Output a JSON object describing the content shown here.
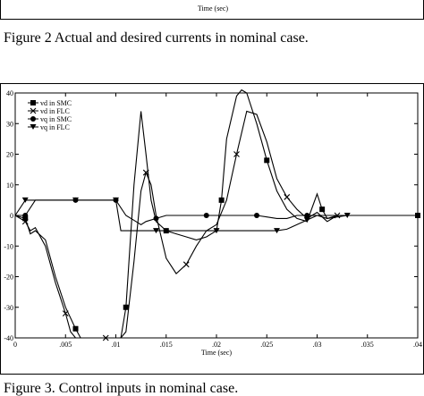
{
  "top_figure": {
    "xlabel": "Time (sec)",
    "caption": "Figure 2 Actual and desired currents in nominal case."
  },
  "bottom_figure": {
    "caption": "Figure 3. Control inputs in nominal case."
  },
  "chart_data": {
    "type": "line",
    "xlabel": "Time (sec)",
    "ylabel": "",
    "xlim": [
      0,
      0.04
    ],
    "ylim": [
      -40,
      40
    ],
    "xticks": [
      "0",
      ".005",
      ".01",
      ".015",
      ".02",
      ".025",
      ".03",
      ".035",
      ".04"
    ],
    "yticks": [
      "40",
      "30",
      "20",
      "10",
      "0",
      "-10",
      "-20",
      "-30",
      "-40"
    ],
    "grid": false,
    "legend_position": "top-left",
    "series": [
      {
        "name": "vd in SMC",
        "marker": "square",
        "x": [
          0,
          0.001,
          0.0015,
          0.002,
          0.003,
          0.004,
          0.005,
          0.006,
          0.0065,
          0.007,
          0.008,
          0.009,
          0.0105,
          0.011,
          0.0118,
          0.0125,
          0.013,
          0.0135,
          0.014,
          0.015,
          0.016,
          0.017,
          0.018,
          0.019,
          0.02,
          0.0205,
          0.021,
          0.022,
          0.0225,
          0.023,
          0.024,
          0.025,
          0.026,
          0.027,
          0.028,
          0.029,
          0.03,
          0.0305,
          0.031,
          0.032,
          0.033,
          0.034,
          0.035,
          0.04
        ],
        "y": [
          0,
          -1,
          -6,
          -5,
          -8,
          -20,
          -30,
          -37,
          -40,
          -40,
          -40,
          -40,
          -40,
          -30,
          10,
          34,
          20,
          5,
          -2,
          -5,
          -6,
          -7,
          -8,
          -7,
          -5,
          5,
          25,
          39,
          41,
          40,
          30,
          18,
          8,
          2,
          -1,
          -2,
          7,
          2,
          -1,
          0,
          0,
          0,
          0,
          0
        ]
      },
      {
        "name": "vd in FLC",
        "marker": "x",
        "x": [
          0,
          0.001,
          0.0015,
          0.002,
          0.003,
          0.004,
          0.005,
          0.0055,
          0.006,
          0.007,
          0.008,
          0.009,
          0.0105,
          0.011,
          0.0118,
          0.0125,
          0.013,
          0.0135,
          0.014,
          0.015,
          0.016,
          0.017,
          0.018,
          0.019,
          0.02,
          0.021,
          0.022,
          0.023,
          0.024,
          0.025,
          0.026,
          0.027,
          0.028,
          0.029,
          0.03,
          0.031,
          0.032,
          0.033,
          0.035,
          0.04
        ],
        "y": [
          0,
          -2,
          -5,
          -4,
          -10,
          -22,
          -32,
          -38,
          -40,
          -40,
          -40,
          -40,
          -40,
          -38,
          -15,
          8,
          14,
          10,
          0,
          -14,
          -19,
          -16,
          -10,
          -5,
          -3,
          5,
          20,
          34,
          33,
          24,
          12,
          6,
          2,
          -1,
          1,
          -2,
          0,
          0,
          0,
          0
        ]
      },
      {
        "name": "vq in SMC",
        "marker": "circle",
        "x": [
          0,
          0.001,
          0.002,
          0.003,
          0.004,
          0.005,
          0.006,
          0.007,
          0.008,
          0.009,
          0.0098,
          0.01,
          0.011,
          0.012,
          0.0125,
          0.013,
          0.014,
          0.015,
          0.016,
          0.017,
          0.018,
          0.019,
          0.02,
          0.021,
          0.022,
          0.023,
          0.024,
          0.025,
          0.026,
          0.027,
          0.028,
          0.029,
          0.03,
          0.031,
          0.032,
          0.035,
          0.04
        ],
        "y": [
          0,
          0,
          5,
          5,
          5,
          5,
          5,
          5,
          5,
          5,
          5,
          5,
          0,
          -2,
          -3,
          -2,
          -1,
          0,
          0,
          0,
          0,
          0,
          0,
          0,
          0,
          0,
          0,
          -0.5,
          -1,
          -1,
          0,
          0,
          0,
          0,
          0,
          0,
          0
        ]
      },
      {
        "name": "vq in FLC",
        "marker": "triangle-down",
        "x": [
          0,
          0.001,
          0.002,
          0.004,
          0.006,
          0.008,
          0.0098,
          0.01,
          0.0105,
          0.012,
          0.014,
          0.016,
          0.018,
          0.02,
          0.022,
          0.024,
          0.026,
          0.027,
          0.028,
          0.029,
          0.03,
          0.031,
          0.033,
          0.035,
          0.04
        ],
        "y": [
          0,
          5,
          5,
          5,
          5,
          5,
          5,
          5,
          -5,
          -5,
          -5,
          -5,
          -5,
          -5,
          -5,
          -5,
          -5,
          -4.5,
          -3,
          -1.5,
          0,
          -1,
          0,
          0,
          0
        ]
      }
    ]
  }
}
